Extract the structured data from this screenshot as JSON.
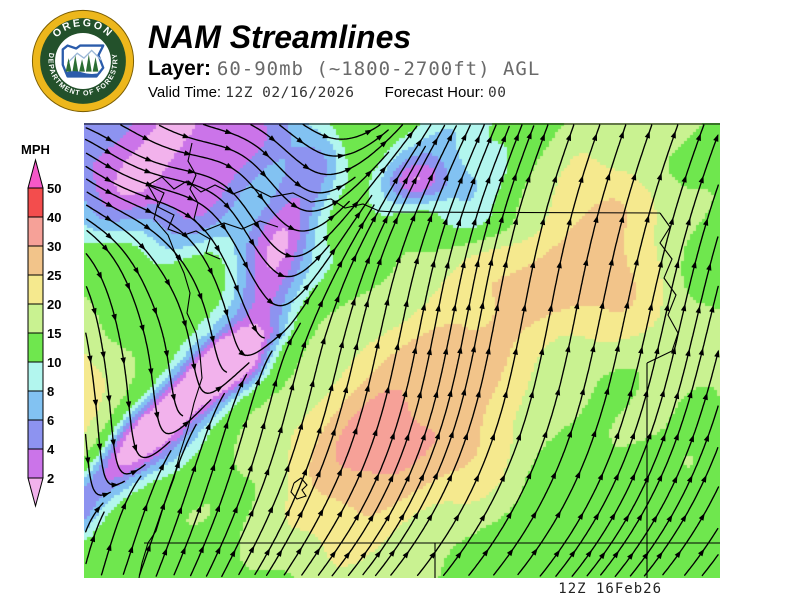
{
  "header": {
    "title": "NAM Streamlines",
    "layer_label": "Layer:",
    "layer_value": "60-90mb (~1800-2700ft) AGL",
    "valid_time_label": "Valid Time:",
    "valid_time_value": "12Z 02/16/2026",
    "forecast_hour_label": "Forecast Hour:",
    "forecast_hour_value": "00"
  },
  "logo": {
    "org_top": "OREGON",
    "org_bottom": "DEPARTMENT OF FORESTRY",
    "colors": {
      "ring_gold": "#edb71c",
      "band_green": "#23512b",
      "inner_white": "#ffffff",
      "state_blue": "#2b5cab",
      "tree_green": "#2c6e33"
    }
  },
  "legend": {
    "units": "MPH",
    "ticks": [
      50,
      40,
      30,
      25,
      20,
      15,
      10,
      8,
      6,
      4,
      2
    ],
    "colors_top_to_bottom": [
      "#f558c8",
      "#f34d4d",
      "#f6a198",
      "#f2c48a",
      "#f5e98e",
      "#c9f291",
      "#6fe74e",
      "#b2f6ee",
      "#82c2f2",
      "#8d93f0",
      "#cb74e9",
      "#f2b2ec"
    ]
  },
  "map": {
    "timestamp": "12Z 16Feb26",
    "speed_palette_mph_max": [
      2,
      4,
      6,
      8,
      10,
      15,
      20,
      25,
      30,
      40,
      50,
      999
    ],
    "line_color": "#000000"
  }
}
